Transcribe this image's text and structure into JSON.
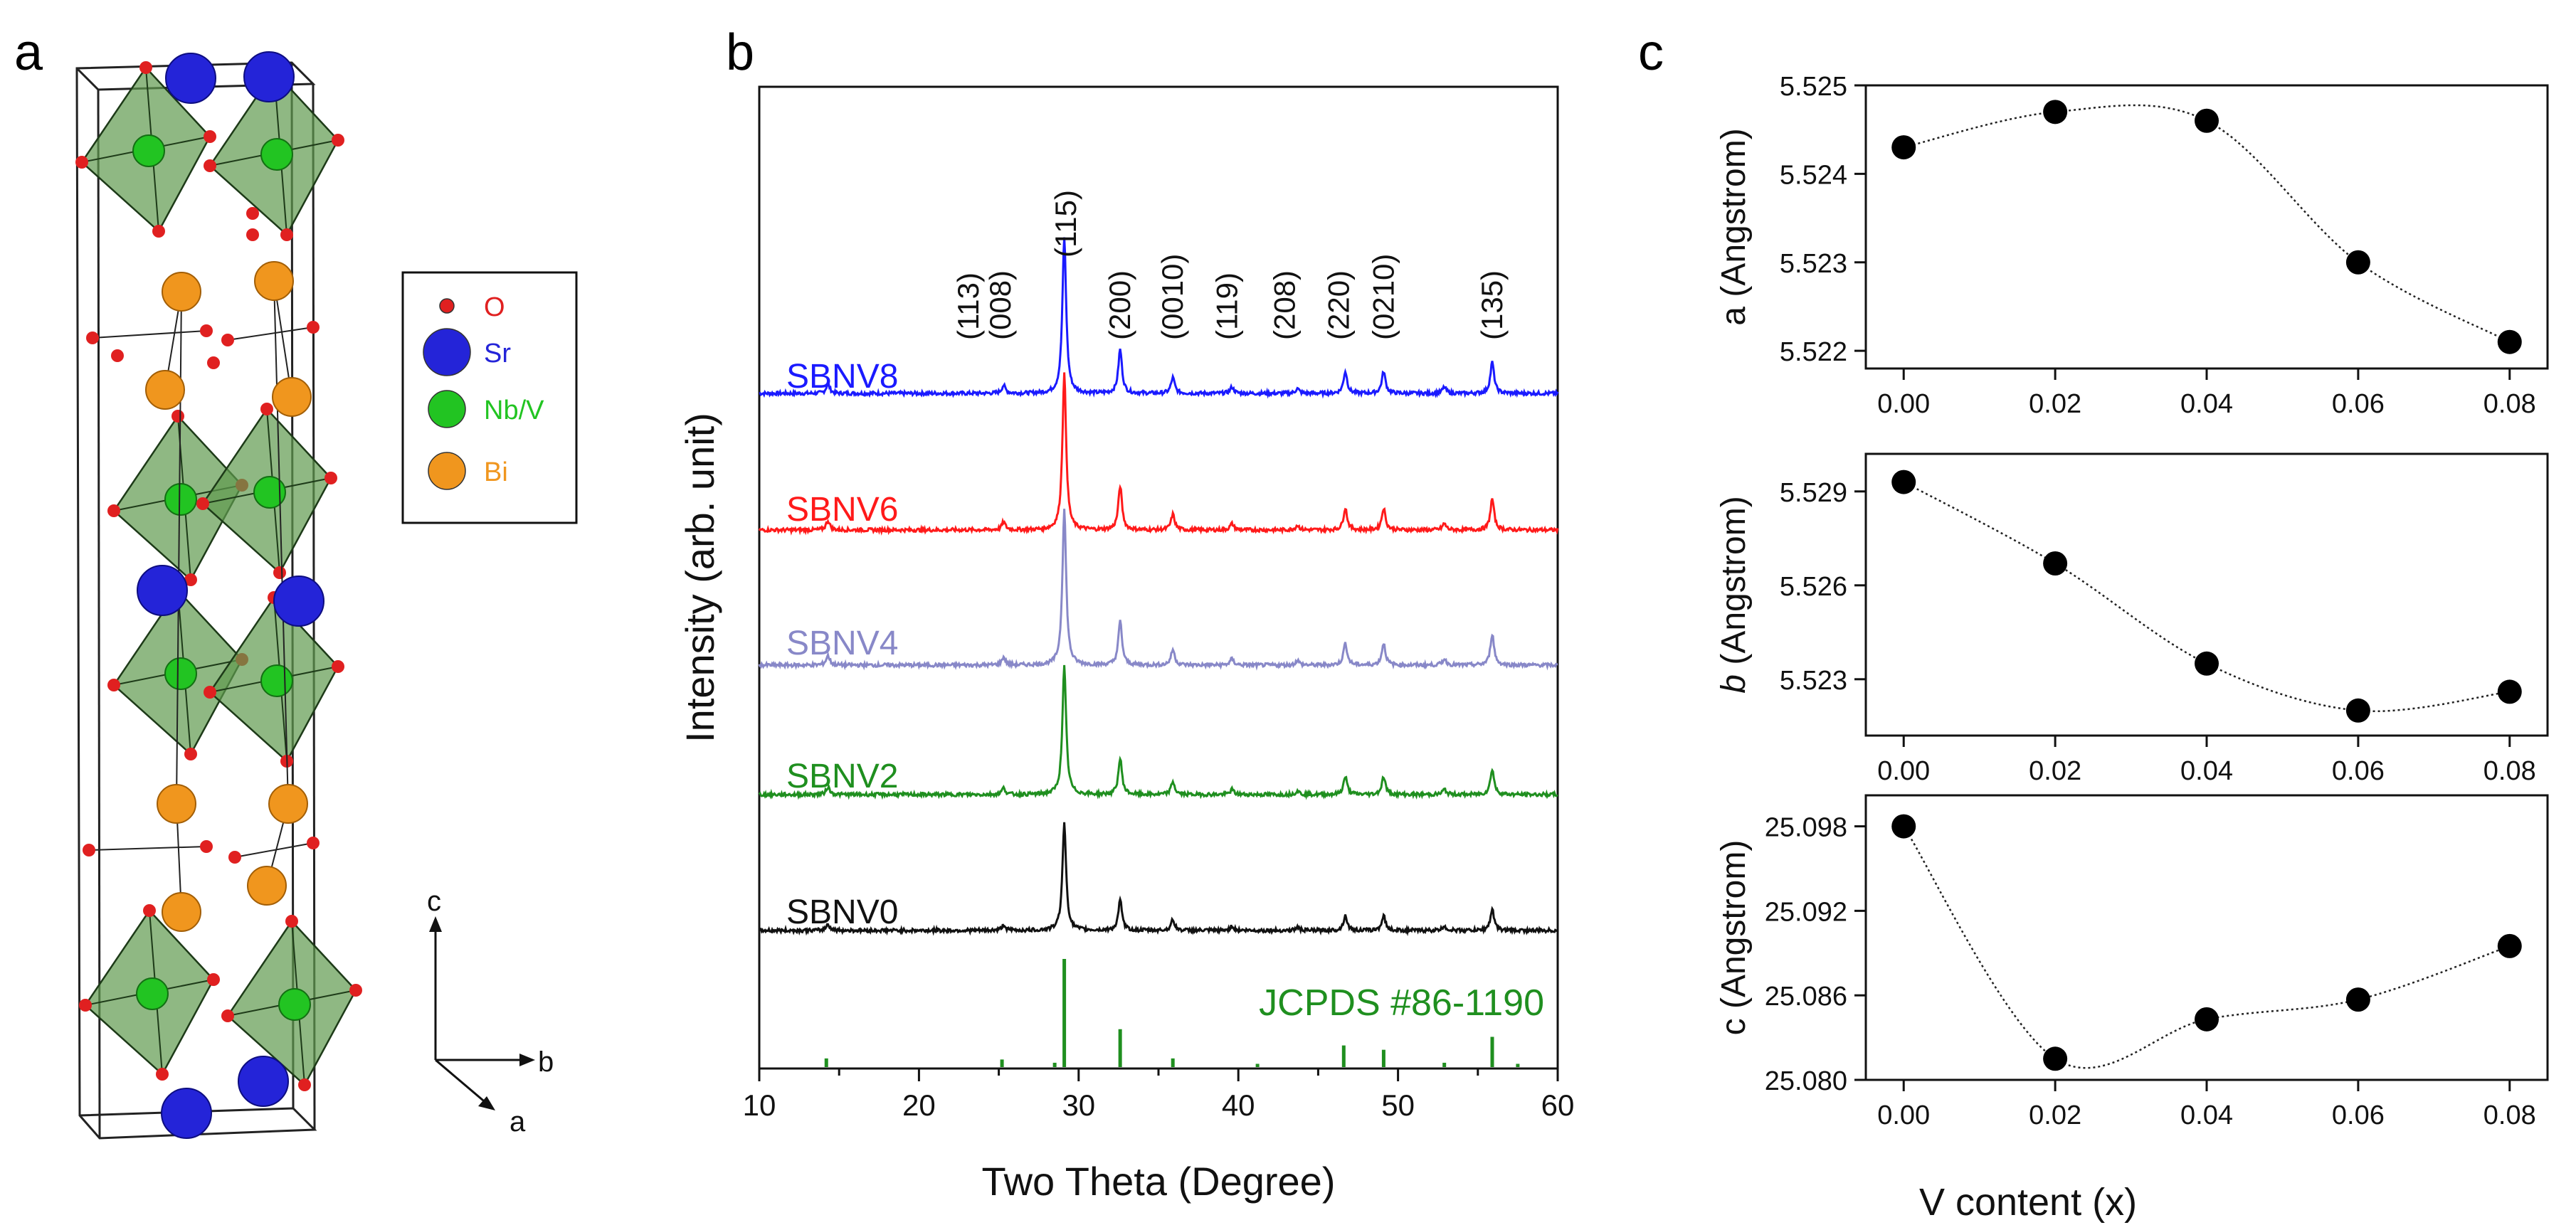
{
  "panels": {
    "a": "a",
    "b": "b",
    "c": "c"
  },
  "legend_a": {
    "items": [
      {
        "label": "O",
        "color": "#e02020"
      },
      {
        "label": "Sr",
        "color": "#2424d8"
      },
      {
        "label": "Nb/V",
        "color": "#22c422"
      },
      {
        "label": "Bi",
        "color": "#f0961e"
      }
    ]
  },
  "axes_a": {
    "c": "c",
    "b": "b",
    "a": "a"
  },
  "colors": {
    "oxygen": "#e02020",
    "strontium": "#2424d8",
    "niobium": "#22c422",
    "bismuth": "#f0961e",
    "octahedron": "#5f9a4e"
  },
  "chart_data": [
    {
      "type": "line",
      "panel": "b",
      "title": "",
      "xlabel": "Two Theta (Degree)",
      "ylabel": "Intensity (arb. unit)",
      "xlim": [
        10,
        60
      ],
      "xticks": [
        "10",
        "20",
        "30",
        "40",
        "50",
        "60"
      ],
      "series": [
        {
          "name": "SBNV8",
          "color": "#1a1aff",
          "peak_scale": 1.0
        },
        {
          "name": "SBNV6",
          "color": "#ff1a1a",
          "peak_scale": 1.0
        },
        {
          "name": "SBNV4",
          "color": "#8888c8",
          "peak_scale": 1.0
        },
        {
          "name": "SBNV2",
          "color": "#1f8f1f",
          "peak_scale": 0.75
        },
        {
          "name": "SBNV0",
          "color": "#111111",
          "peak_scale": 0.65
        }
      ],
      "peaks": [
        {
          "pos": 14.3,
          "h": 0.06
        },
        {
          "pos": 25.3,
          "h": 0.05
        },
        {
          "pos": 29.1,
          "h": 1.0
        },
        {
          "pos": 32.6,
          "h": 0.28
        },
        {
          "pos": 35.9,
          "h": 0.1
        },
        {
          "pos": 39.6,
          "h": 0.04
        },
        {
          "pos": 43.7,
          "h": 0.03
        },
        {
          "pos": 46.7,
          "h": 0.14
        },
        {
          "pos": 49.1,
          "h": 0.14
        },
        {
          "pos": 52.9,
          "h": 0.04
        },
        {
          "pos": 55.9,
          "h": 0.2
        }
      ],
      "reflection_labels": [
        {
          "label": "(113)",
          "x": 23.1
        },
        {
          "label": "(008)",
          "x": 25.1
        },
        {
          "label": "(115)",
          "x": 29.2
        },
        {
          "label": "(200)",
          "x": 32.6
        },
        {
          "label": "(0010)",
          "x": 35.9
        },
        {
          "label": "(119)",
          "x": 39.3
        },
        {
          "label": "(208)",
          "x": 42.9
        },
        {
          "label": "(220)",
          "x": 46.3
        },
        {
          "label": "(0210)",
          "x": 49.1
        },
        {
          "label": "(135)",
          "x": 55.9
        }
      ],
      "reference": {
        "label": "JCPDS #86-1190",
        "color": "#1f8f1f",
        "lines": [
          {
            "pos": 14.2,
            "h": 0.08
          },
          {
            "pos": 25.2,
            "h": 0.07
          },
          {
            "pos": 28.5,
            "h": 0.04
          },
          {
            "pos": 29.1,
            "h": 1.0
          },
          {
            "pos": 32.6,
            "h": 0.35
          },
          {
            "pos": 35.9,
            "h": 0.08
          },
          {
            "pos": 46.6,
            "h": 0.2
          },
          {
            "pos": 49.1,
            "h": 0.16
          },
          {
            "pos": 55.9,
            "h": 0.28
          },
          {
            "pos": 57.5,
            "h": 0.03
          },
          {
            "pos": 41.2,
            "h": 0.03
          },
          {
            "pos": 52.9,
            "h": 0.04
          }
        ]
      }
    },
    {
      "type": "line",
      "panel": "c-top",
      "ylabel": "a (Angstrom)",
      "x": [
        0.0,
        0.02,
        0.04,
        0.06,
        0.08
      ],
      "values": [
        5.5243,
        5.5247,
        5.5246,
        5.523,
        5.5221
      ],
      "ylim": [
        5.5218,
        5.525
      ],
      "yticks": [
        5.522,
        5.523,
        5.524,
        5.525
      ],
      "ytick_labels": [
        "5.522",
        "5.523",
        "5.524",
        "5.525"
      ],
      "xlim": [
        -0.005,
        0.085
      ],
      "xtick_labels": [
        "0.00",
        "0.02",
        "0.04",
        "0.06",
        "0.08"
      ]
    },
    {
      "type": "line",
      "panel": "c-middle",
      "ylabel_prefix": "b",
      "ylabel_suffix": " (Angstrom)",
      "x": [
        0.0,
        0.02,
        0.04,
        0.06,
        0.08
      ],
      "values": [
        5.5293,
        5.5267,
        5.5235,
        5.522,
        5.5226
      ],
      "ylim": [
        5.5212,
        5.5302
      ],
      "yticks": [
        5.523,
        5.526,
        5.529
      ],
      "ytick_labels": [
        "5.523",
        "5.526",
        "5.529"
      ],
      "xlim": [
        -0.005,
        0.085
      ],
      "xtick_labels": [
        "0.00",
        "0.02",
        "0.04",
        "0.06",
        "0.08"
      ]
    },
    {
      "type": "line",
      "panel": "c-bottom",
      "ylabel": "c (Angstrom)",
      "xlabel": "V content (x)",
      "x": [
        0.0,
        0.02,
        0.04,
        0.06,
        0.08
      ],
      "values": [
        25.098,
        25.0815,
        25.0843,
        25.0857,
        25.0895
      ],
      "ylim": [
        25.08,
        25.1002
      ],
      "yticks": [
        25.08,
        25.086,
        25.092,
        25.098
      ],
      "ytick_labels": [
        "25.080",
        "25.086",
        "25.092",
        "25.098"
      ],
      "xlim": [
        -0.005,
        0.085
      ],
      "xtick_labels": [
        "0.00",
        "0.02",
        "0.04",
        "0.06",
        "0.08"
      ]
    }
  ]
}
